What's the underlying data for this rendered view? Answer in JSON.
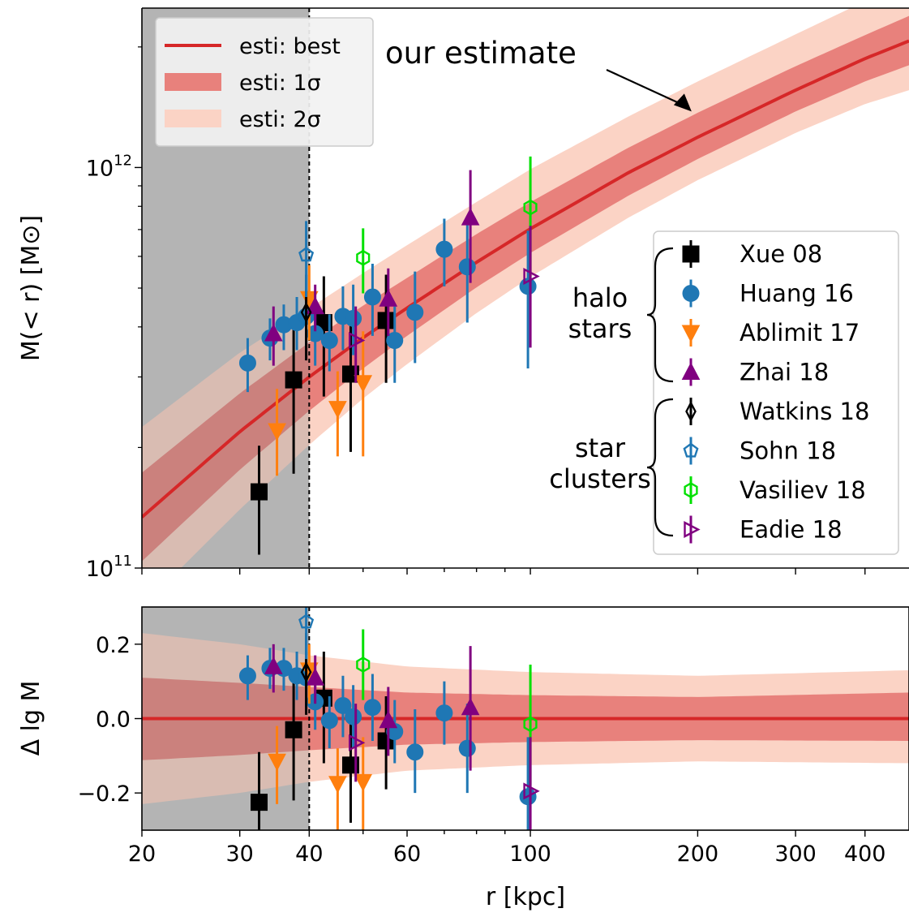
{
  "colors": {
    "best": "#d62728",
    "sigma1": "#e8817c",
    "sigma2": "#fbd3c5",
    "shade": "#c8c8c8",
    "Xue 08": "#000000",
    "Huang 16": "#1f77b4",
    "Ablimit 17": "#ff7f0e",
    "Zhai 18": "#800080",
    "Watkins 18": "#000000",
    "Sohn 18": "#1f77b4",
    "Vasiliev 18": "#00e000",
    "Eadie 18": "#800080"
  },
  "chart_data": [
    {
      "type": "line",
      "panel": "top",
      "ylabel": "M(< r) [M⊙]",
      "xscale": "log",
      "yscale": "log",
      "xlim": [
        20,
        480
      ],
      "ylim": [
        100000000000.0,
        2500000000000.0
      ],
      "yticks": [
        {
          "value": 100000000000.0,
          "base": "10",
          "exp": "11"
        },
        {
          "value": 1000000000000.0,
          "base": "10",
          "exp": "12"
        }
      ],
      "shaded_region_x": [
        20,
        40
      ],
      "vline_x": 40,
      "annotation": {
        "text": "our estimate",
        "target": [
          195,
          1380000000000.0
        ]
      },
      "estimate": {
        "r": [
          20,
          30,
          40,
          50,
          60,
          80,
          100,
          150,
          200,
          300,
          400,
          480
        ],
        "best": [
          134000000000.0,
          219000000000.0,
          300000000000.0,
          376000000000.0,
          446000000000.0,
          580000000000.0,
          703000000000.0,
          970000000000.0,
          1190000000000.0,
          1560000000000.0,
          1870000000000.0,
          2070000000000.0
        ],
        "s1_lo": [
          104000000000.0,
          176000000000.0,
          247000000000.0,
          315000000000.0,
          380000000000.0,
          502000000000.0,
          612000000000.0,
          850000000000.0,
          1050000000000.0,
          1380000000000.0,
          1640000000000.0,
          1800000000000.0
        ],
        "s1_hi": [
          173000000000.0,
          273000000000.0,
          366000000000.0,
          452000000000.0,
          530000000000.0,
          682000000000.0,
          820000000000.0,
          1120000000000.0,
          1370000000000.0,
          1790000000000.0,
          2140000000000.0,
          2390000000000.0
        ],
        "s2_lo": [
          80000000000.0,
          140000000000.0,
          203000000000.0,
          265000000000.0,
          323000000000.0,
          433000000000.0,
          533000000000.0,
          749000000000.0,
          930000000000.0,
          1220000000000.0,
          1440000000000.0,
          1560000000000.0
        ],
        "s2_hi": [
          225000000000.0,
          345000000000.0,
          445000000000.0,
          545000000000.0,
          640000000000.0,
          820000000000.0,
          990000000000.0,
          1340000000000.0,
          1640000000000.0,
          2150000000000.0,
          2600000000000.0,
          2950000000000.0
        ]
      },
      "legend_estimate": [
        {
          "label": "esti: best",
          "style": "line"
        },
        {
          "label": "esti: 1σ",
          "style": "band1"
        },
        {
          "label": "esti: 2σ",
          "style": "band2"
        }
      ],
      "legend_data": [
        "Xue 08",
        "Huang 16",
        "Ablimit 17",
        "Zhai 18",
        "Watkins 18",
        "Sohn 18",
        "Vasiliev 18",
        "Eadie 18"
      ],
      "brace_labels": [
        [
          "halo",
          "stars"
        ],
        [
          "star",
          "clusters"
        ]
      ],
      "series": [
        {
          "name": "Xue 08",
          "marker": "square",
          "filled": true,
          "points": [
            {
              "x": 32.5,
              "y": 155000000000.0,
              "lo": 108000000000.0,
              "hi": 202000000000.0
            },
            {
              "x": 37.5,
              "y": 295000000000.0,
              "lo": 172000000000.0,
              "hi": 410000000000.0
            },
            {
              "x": 42.5,
              "y": 410000000000.0,
              "lo": 268000000000.0,
              "hi": 535000000000.0
            },
            {
              "x": 47.5,
              "y": 305000000000.0,
              "lo": 195000000000.0,
              "hi": 410000000000.0
            },
            {
              "x": 55.0,
              "y": 415000000000.0,
              "lo": 290000000000.0,
              "hi": 540000000000.0
            }
          ]
        },
        {
          "name": "Huang 16",
          "marker": "circle",
          "filled": true,
          "points": [
            {
              "x": 31.0,
              "y": 325000000000.0,
              "lo": 275000000000.0,
              "hi": 375000000000.0
            },
            {
              "x": 34.0,
              "y": 375000000000.0,
              "lo": 330000000000.0,
              "hi": 420000000000.0
            },
            {
              "x": 36.0,
              "y": 405000000000.0,
              "lo": 350000000000.0,
              "hi": 455000000000.0
            },
            {
              "x": 38.0,
              "y": 410000000000.0,
              "lo": 350000000000.0,
              "hi": 475000000000.0
            },
            {
              "x": 39.5,
              "y": 425000000000.0,
              "lo": 355000000000.0,
              "hi": 495000000000.0
            },
            {
              "x": 41.0,
              "y": 385000000000.0,
              "lo": 320000000000.0,
              "hi": 445000000000.0
            },
            {
              "x": 43.5,
              "y": 370000000000.0,
              "lo": 310000000000.0,
              "hi": 430000000000.0
            },
            {
              "x": 46.0,
              "y": 425000000000.0,
              "lo": 350000000000.0,
              "hi": 505000000000.0
            },
            {
              "x": 48.0,
              "y": 420000000000.0,
              "lo": 340000000000.0,
              "hi": 510000000000.0
            },
            {
              "x": 52.0,
              "y": 475000000000.0,
              "lo": 380000000000.0,
              "hi": 575000000000.0
            },
            {
              "x": 57.0,
              "y": 370000000000.0,
              "lo": 290000000000.0,
              "hi": 450000000000.0
            },
            {
              "x": 62.0,
              "y": 435000000000.0,
              "lo": 325000000000.0,
              "hi": 550000000000.0
            },
            {
              "x": 70.0,
              "y": 625000000000.0,
              "lo": 505000000000.0,
              "hi": 745000000000.0
            },
            {
              "x": 77.0,
              "y": 565000000000.0,
              "lo": 410000000000.0,
              "hi": 720000000000.0
            },
            {
              "x": 99.0,
              "y": 505000000000.0,
              "lo": 315000000000.0,
              "hi": 695000000000.0
            }
          ]
        },
        {
          "name": "Ablimit 17",
          "marker": "triangle-down",
          "filled": true,
          "points": [
            {
              "x": 35.0,
              "y": 220000000000.0,
              "lo": 170000000000.0,
              "hi": 280000000000.0
            },
            {
              "x": 40.0,
              "y": 470000000000.0,
              "lo": 370000000000.0,
              "hi": 570000000000.0
            },
            {
              "x": 45.0,
              "y": 250000000000.0,
              "lo": 190000000000.0,
              "hi": 310000000000.0
            },
            {
              "x": 50.0,
              "y": 290000000000.0,
              "lo": 190000000000.0,
              "hi": 390000000000.0
            }
          ]
        },
        {
          "name": "Zhai 18",
          "marker": "triangle-up",
          "filled": true,
          "points": [
            {
              "x": 34.5,
              "y": 385000000000.0,
              "lo": 320000000000.0,
              "hi": 450000000000.0
            },
            {
              "x": 41.0,
              "y": 450000000000.0,
              "lo": 390000000000.0,
              "hi": 510000000000.0
            },
            {
              "x": 55.5,
              "y": 470000000000.0,
              "lo": 380000000000.0,
              "hi": 560000000000.0
            },
            {
              "x": 78.0,
              "y": 750000000000.0,
              "lo": 515000000000.0,
              "hi": 985000000000.0
            }
          ]
        },
        {
          "name": "Watkins 18",
          "marker": "diamond",
          "filled": false,
          "points": [
            {
              "x": 39.5,
              "y": 435000000000.0,
              "lo": 330000000000.0,
              "hi": 540000000000.0
            }
          ]
        },
        {
          "name": "Sohn 18",
          "marker": "pentagon",
          "filled": false,
          "points": [
            {
              "x": 39.5,
              "y": 605000000000.0,
              "lo": 475000000000.0,
              "hi": 735000000000.0
            }
          ]
        },
        {
          "name": "Vasiliev 18",
          "marker": "hexagon",
          "filled": false,
          "points": [
            {
              "x": 50.0,
              "y": 595000000000.0,
              "lo": 485000000000.0,
              "hi": 705000000000.0
            },
            {
              "x": 100.0,
              "y": 795000000000.0,
              "lo": 525000000000.0,
              "hi": 1065000000000.0
            }
          ]
        },
        {
          "name": "Eadie 18",
          "marker": "triangle-right",
          "filled": false,
          "points": [
            {
              "x": 48.5,
              "y": 370000000000.0,
              "lo": 290000000000.0,
              "hi": 450000000000.0
            },
            {
              "x": 100.0,
              "y": 535000000000.0,
              "lo": 355000000000.0,
              "hi": 715000000000.0
            }
          ]
        }
      ]
    },
    {
      "type": "line",
      "panel": "bottom",
      "xlabel": "r [kpc]",
      "ylabel": "Δ lg M",
      "xscale": "log",
      "xlim": [
        20,
        480
      ],
      "ylim": [
        -0.3,
        0.3
      ],
      "xticks": [
        {
          "value": 20,
          "label": "20"
        },
        {
          "value": 30,
          "label": "30"
        },
        {
          "value": 40,
          "label": "40"
        },
        {
          "value": 60,
          "label": "60"
        },
        {
          "value": 100,
          "label": "100"
        },
        {
          "value": 200,
          "label": "200"
        },
        {
          "value": 300,
          "label": "300"
        },
        {
          "value": 400,
          "label": "400"
        }
      ],
      "yticks": [
        {
          "value": -0.2,
          "label": "−0.2"
        },
        {
          "value": 0.0,
          "label": "0.0"
        },
        {
          "value": 0.2,
          "label": "0.2"
        }
      ],
      "shaded_region_x": [
        20,
        40
      ],
      "vline_x": 40,
      "estimate": {
        "r": [
          20,
          30,
          40,
          60,
          100,
          200,
          480
        ],
        "best": [
          0,
          0,
          0,
          0,
          0,
          0,
          0
        ],
        "s1_lo": [
          -0.112,
          -0.098,
          -0.085,
          -0.07,
          -0.063,
          -0.058,
          -0.06
        ],
        "s1_hi": [
          0.11,
          0.096,
          0.085,
          0.07,
          0.063,
          0.058,
          0.07
        ],
        "s2_lo": [
          -0.23,
          -0.2,
          -0.17,
          -0.14,
          -0.125,
          -0.115,
          -0.12
        ],
        "s2_hi": [
          0.23,
          0.2,
          0.17,
          0.14,
          0.125,
          0.115,
          0.13
        ]
      },
      "series": [
        {
          "name": "Xue 08",
          "marker": "square",
          "filled": true,
          "points": [
            {
              "x": 32.5,
              "y": -0.225,
              "lo": -0.33,
              "hi": -0.09
            },
            {
              "x": 37.5,
              "y": -0.03,
              "lo": -0.22,
              "hi": 0.13
            },
            {
              "x": 42.5,
              "y": 0.055,
              "lo": -0.12,
              "hi": 0.18
            },
            {
              "x": 47.5,
              "y": -0.125,
              "lo": -0.28,
              "hi": 0.01
            },
            {
              "x": 55.0,
              "y": -0.06,
              "lo": -0.19,
              "hi": 0.06
            }
          ]
        },
        {
          "name": "Huang 16",
          "marker": "circle",
          "filled": true,
          "points": [
            {
              "x": 31.0,
              "y": 0.115,
              "lo": 0.05,
              "hi": 0.17
            },
            {
              "x": 34.0,
              "y": 0.135,
              "lo": 0.08,
              "hi": 0.19
            },
            {
              "x": 36.0,
              "y": 0.135,
              "lo": 0.075,
              "hi": 0.19
            },
            {
              "x": 38.0,
              "y": 0.115,
              "lo": 0.05,
              "hi": 0.18
            },
            {
              "x": 39.5,
              "y": 0.11,
              "lo": 0.03,
              "hi": 0.18
            },
            {
              "x": 41.0,
              "y": 0.045,
              "lo": -0.03,
              "hi": 0.11
            },
            {
              "x": 43.5,
              "y": -0.005,
              "lo": -0.08,
              "hi": 0.06
            },
            {
              "x": 46.0,
              "y": 0.035,
              "lo": -0.05,
              "hi": 0.115
            },
            {
              "x": 48.0,
              "y": 0.005,
              "lo": -0.08,
              "hi": 0.09
            },
            {
              "x": 52.0,
              "y": 0.03,
              "lo": -0.06,
              "hi": 0.12
            },
            {
              "x": 57.0,
              "y": -0.035,
              "lo": -0.12,
              "hi": 0.05
            },
            {
              "x": 62.0,
              "y": -0.09,
              "lo": -0.2,
              "hi": 0.025
            },
            {
              "x": 70.0,
              "y": 0.015,
              "lo": -0.07,
              "hi": 0.1
            },
            {
              "x": 77.0,
              "y": -0.08,
              "lo": -0.2,
              "hi": 0.04
            },
            {
              "x": 99.0,
              "y": -0.21,
              "lo": -0.3,
              "hi": -0.05
            }
          ]
        },
        {
          "name": "Ablimit 17",
          "marker": "triangle-down",
          "filled": true,
          "points": [
            {
              "x": 35.0,
              "y": -0.115,
              "lo": -0.23,
              "hi": -0.02
            },
            {
              "x": 40.0,
              "y": 0.13,
              "lo": 0.04,
              "hi": 0.2
            },
            {
              "x": 45.0,
              "y": -0.175,
              "lo": -0.3,
              "hi": -0.08
            },
            {
              "x": 50.0,
              "y": -0.17,
              "lo": -0.3,
              "hi": -0.05
            }
          ]
        },
        {
          "name": "Zhai 18",
          "marker": "triangle-up",
          "filled": true,
          "points": [
            {
              "x": 34.5,
              "y": 0.14,
              "lo": 0.07,
              "hi": 0.2
            },
            {
              "x": 41.0,
              "y": 0.11,
              "lo": 0.04,
              "hi": 0.17
            },
            {
              "x": 55.5,
              "y": -0.005,
              "lo": -0.1,
              "hi": 0.085
            },
            {
              "x": 78.0,
              "y": 0.03,
              "lo": -0.14,
              "hi": 0.195
            }
          ]
        },
        {
          "name": "Watkins 18",
          "marker": "diamond",
          "filled": false,
          "points": [
            {
              "x": 39.5,
              "y": 0.125,
              "lo": 0.01,
              "hi": 0.23
            }
          ]
        },
        {
          "name": "Sohn 18",
          "marker": "pentagon",
          "filled": false,
          "points": [
            {
              "x": 39.5,
              "y": 0.26,
              "lo": 0.16,
              "hi": 0.3
            }
          ]
        },
        {
          "name": "Vasiliev 18",
          "marker": "hexagon",
          "filled": false,
          "points": [
            {
              "x": 50.0,
              "y": 0.145,
              "lo": 0.05,
              "hi": 0.24
            },
            {
              "x": 100.0,
              "y": -0.015,
              "lo": -0.18,
              "hi": 0.145
            }
          ]
        },
        {
          "name": "Eadie 18",
          "marker": "triangle-right",
          "filled": false,
          "points": [
            {
              "x": 48.5,
              "y": -0.065,
              "lo": -0.17,
              "hi": 0.04
            },
            {
              "x": 100.0,
              "y": -0.195,
              "lo": -0.3,
              "hi": -0.05
            }
          ]
        }
      ]
    }
  ]
}
